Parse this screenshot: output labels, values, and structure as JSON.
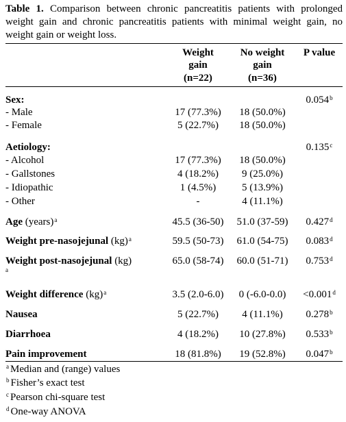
{
  "caption": {
    "label": "Table 1.",
    "text": "Comparison between chronic pancreatitis patients with prolonged weight gain and chronic pancreatitis patients with minimal weight gain, no weight gain or weight loss."
  },
  "headers": {
    "col1_line1": "Weight",
    "col1_line2": "gain",
    "col1_line3": "(n=22)",
    "col2_line1": "No weight",
    "col2_line2": "gain",
    "col2_line3": "(n=36)",
    "col3": "P value"
  },
  "rows": {
    "sex": {
      "label": "Sex:",
      "p": "0.054",
      "p_sup": "b"
    },
    "male": {
      "label": "- Male",
      "v1": "17 (77.3%)",
      "v2": "18 (50.0%)"
    },
    "female": {
      "label": "- Female",
      "v1": "5 (22.7%)",
      "v2": "18 (50.0%)"
    },
    "aetiology": {
      "label": "Aetiology:",
      "p": "0.135",
      "p_sup": "c"
    },
    "alcohol": {
      "label": "- Alcohol",
      "v1": "17 (77.3%)",
      "v2": "18 (50.0%)"
    },
    "gallstones": {
      "label": "- Gallstones",
      "v1": "4 (18.2%)",
      "v2": "9 (25.0%)"
    },
    "idiopathic": {
      "label": "- Idiopathic",
      "v1": "1 (4.5%)",
      "v2": "5 (13.9%)"
    },
    "other": {
      "label": "- Other",
      "v1": "-",
      "v2": "4 (11.1%)"
    },
    "age": {
      "label_bold": "Age",
      "label_rest": " (years)",
      "sup": "a",
      "v1": "45.5 (36-50)",
      "v2": "51.0 (37-59)",
      "p": "0.427",
      "p_sup": "d"
    },
    "weight_pre": {
      "label_bold": "Weight pre-nasojejunal",
      "label_rest": " (kg)",
      "sup": "a",
      "v1": "59.5 (50-73)",
      "v2": "61.0 (54-75)",
      "p": "0.083",
      "p_sup": "d"
    },
    "weight_post": {
      "label_bold": "Weight post-nasojejunal",
      "label_rest": " (kg)",
      "sup": "a",
      "v1": "65.0 (58-74)",
      "v2": "60.0 (51-71)",
      "p": "0.753",
      "p_sup": "d"
    },
    "weight_diff": {
      "label_bold": "Weight difference",
      "label_rest": " (kg)",
      "sup": "a",
      "v1": "3.5 (2.0-6.0)",
      "v2": "0 (-6.0-0.0)",
      "p": "<0.001",
      "p_sup": "d"
    },
    "nausea": {
      "label_bold": "Nausea",
      "v1": "5 (22.7%)",
      "v2": "4 (11.1%)",
      "p": "0.278",
      "p_sup": "b"
    },
    "diarrhoea": {
      "label_bold": "Diarrhoea",
      "v1": "4 (18.2%)",
      "v2": "10 (27.8%)",
      "p": "0.533",
      "p_sup": "b"
    },
    "pain": {
      "label_bold": "Pain improvement",
      "v1": "18 (81.8%)",
      "v2": "19 (52.8%)",
      "p": "0.047",
      "p_sup": "b"
    }
  },
  "footnotes": [
    {
      "mark": "a",
      "text": "Median and (range) values"
    },
    {
      "mark": "b",
      "text": "Fisher’s exact test"
    },
    {
      "mark": "c",
      "text": "Pearson chi-square test"
    },
    {
      "mark": "d",
      "text": "One-way ANOVA"
    }
  ]
}
